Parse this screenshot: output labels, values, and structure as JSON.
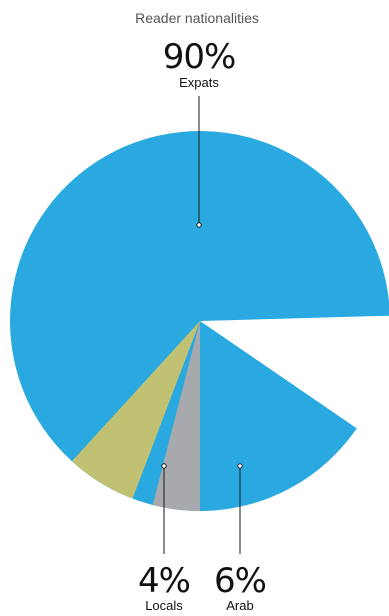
{
  "chart_data": {
    "type": "pie",
    "title": "Reader nationalities",
    "slices": [
      {
        "label": "Expats",
        "value": 90,
        "display": "90%",
        "color": "#29a9e0"
      },
      {
        "label": "Arab",
        "value": 6,
        "display": "6%",
        "color": "#c0c173"
      },
      {
        "label": "Locals",
        "value": 4,
        "display": "4%",
        "color": "#a8a9ac"
      }
    ]
  }
}
